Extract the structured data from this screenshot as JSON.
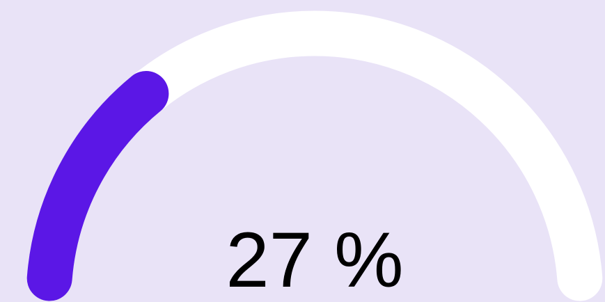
{
  "chart_data": {
    "type": "gauge",
    "values": [
      27
    ],
    "value_labels": [
      "27 %"
    ],
    "ylim": [
      0,
      100
    ],
    "color": "#5b17e6",
    "track_color": "#ffffff"
  }
}
